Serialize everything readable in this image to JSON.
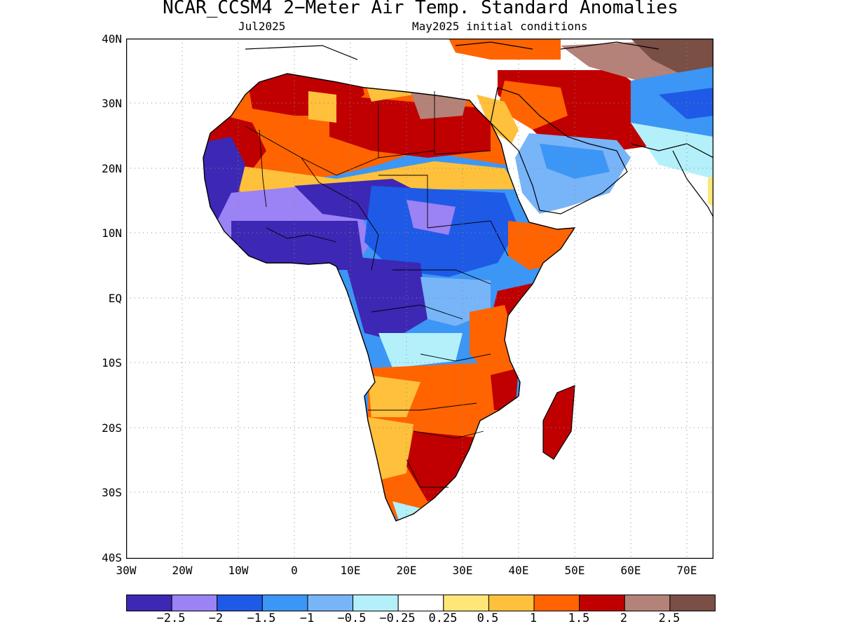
{
  "title": "NCAR_CCSM4 2−Meter Air Temp. Standard Anomalies",
  "valid_month": "Jul2025",
  "init": "May2025 initial conditions",
  "map": {
    "lon_range": [
      -30,
      75
    ],
    "lat_range": [
      -40,
      40
    ],
    "lat_labels": [
      "40N",
      "30N",
      "20N",
      "10N",
      "EQ",
      "10S",
      "20S",
      "30S",
      "40S"
    ],
    "lon_labels": [
      "30W",
      "20W",
      "10W",
      "0",
      "10E",
      "20E",
      "30E",
      "40E",
      "50E",
      "60E",
      "70E"
    ],
    "grid": "dotted"
  },
  "legend": {
    "colors": [
      "#3c28b4",
      "#9b82f5",
      "#1e5ae6",
      "#3c96f5",
      "#78b4f8",
      "#b4f0fa",
      "#ffffff",
      "#ffe678",
      "#ffc03c",
      "#ff6400",
      "#c00000",
      "#b48278",
      "#7a4f46"
    ],
    "labels": [
      "−2.5",
      "−2",
      "−1.5",
      "−1",
      "−0.5",
      "−0.25",
      "0.25",
      "0.5",
      "1",
      "1.5",
      "2",
      "2.5"
    ]
  }
}
